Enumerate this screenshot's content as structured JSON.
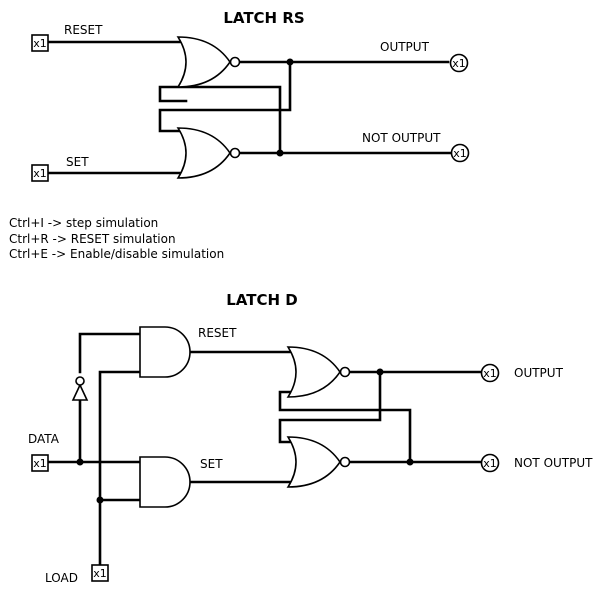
{
  "latch_rs": {
    "title": "LATCH RS",
    "reset_label": "RESET",
    "set_label": "SET",
    "output_label": "OUTPUT",
    "not_output_label": "NOT OUTPUT",
    "input_box": "x1",
    "output_box": "x1"
  },
  "shortcuts": [
    "Ctrl+I -> step simulation",
    "Ctrl+R -> RESET simulation",
    "Ctrl+E -> Enable/disable simulation"
  ],
  "latch_d": {
    "title": "LATCH D",
    "reset_label": "RESET",
    "set_label": "SET",
    "data_label": "DATA",
    "load_label": "LOAD",
    "output_label": "OUTPUT",
    "not_output_label": "NOT OUTPUT",
    "input_box": "x1",
    "output_box": "x1"
  }
}
